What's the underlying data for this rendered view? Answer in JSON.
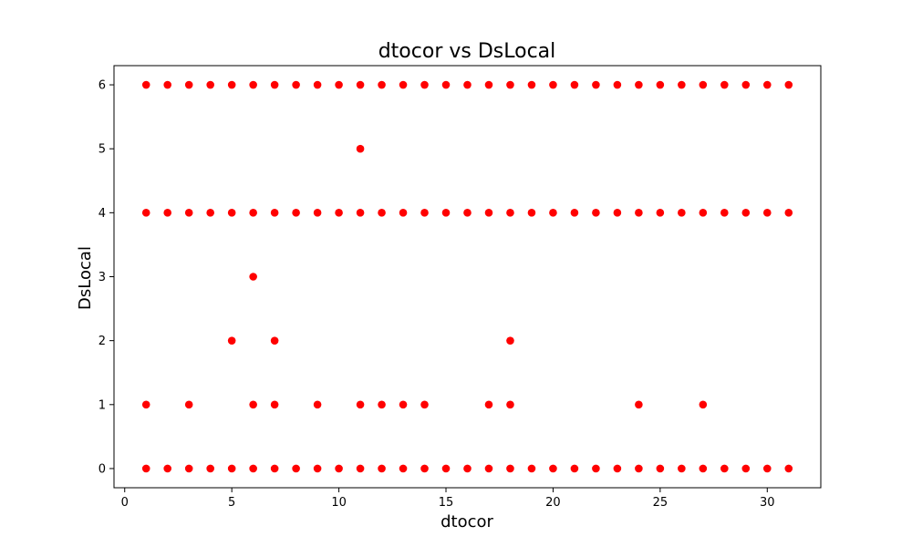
{
  "chart_data": {
    "type": "scatter",
    "title": "dtocor vs DsLocal",
    "xlabel": "dtocor",
    "ylabel": "DsLocal",
    "xlim": [
      -0.5,
      32.5
    ],
    "ylim": [
      -0.3,
      6.3
    ],
    "xticks": [
      0,
      5,
      10,
      15,
      20,
      25,
      30
    ],
    "yticks": [
      0,
      1,
      2,
      3,
      4,
      5,
      6
    ],
    "grid": false,
    "legend": "none",
    "marker_color": "#ff0000",
    "points": [
      [
        1,
        0
      ],
      [
        2,
        0
      ],
      [
        3,
        0
      ],
      [
        4,
        0
      ],
      [
        5,
        0
      ],
      [
        6,
        0
      ],
      [
        7,
        0
      ],
      [
        8,
        0
      ],
      [
        9,
        0
      ],
      [
        10,
        0
      ],
      [
        11,
        0
      ],
      [
        12,
        0
      ],
      [
        13,
        0
      ],
      [
        14,
        0
      ],
      [
        15,
        0
      ],
      [
        16,
        0
      ],
      [
        17,
        0
      ],
      [
        18,
        0
      ],
      [
        19,
        0
      ],
      [
        20,
        0
      ],
      [
        21,
        0
      ],
      [
        22,
        0
      ],
      [
        23,
        0
      ],
      [
        24,
        0
      ],
      [
        25,
        0
      ],
      [
        26,
        0
      ],
      [
        27,
        0
      ],
      [
        28,
        0
      ],
      [
        29,
        0
      ],
      [
        30,
        0
      ],
      [
        31,
        0
      ],
      [
        1,
        4
      ],
      [
        2,
        4
      ],
      [
        3,
        4
      ],
      [
        4,
        4
      ],
      [
        5,
        4
      ],
      [
        6,
        4
      ],
      [
        7,
        4
      ],
      [
        8,
        4
      ],
      [
        9,
        4
      ],
      [
        10,
        4
      ],
      [
        11,
        4
      ],
      [
        12,
        4
      ],
      [
        13,
        4
      ],
      [
        14,
        4
      ],
      [
        15,
        4
      ],
      [
        16,
        4
      ],
      [
        17,
        4
      ],
      [
        18,
        4
      ],
      [
        19,
        4
      ],
      [
        20,
        4
      ],
      [
        21,
        4
      ],
      [
        22,
        4
      ],
      [
        23,
        4
      ],
      [
        24,
        4
      ],
      [
        25,
        4
      ],
      [
        26,
        4
      ],
      [
        27,
        4
      ],
      [
        28,
        4
      ],
      [
        29,
        4
      ],
      [
        30,
        4
      ],
      [
        31,
        4
      ],
      [
        1,
        6
      ],
      [
        2,
        6
      ],
      [
        3,
        6
      ],
      [
        4,
        6
      ],
      [
        5,
        6
      ],
      [
        6,
        6
      ],
      [
        7,
        6
      ],
      [
        8,
        6
      ],
      [
        9,
        6
      ],
      [
        10,
        6
      ],
      [
        11,
        6
      ],
      [
        12,
        6
      ],
      [
        13,
        6
      ],
      [
        14,
        6
      ],
      [
        15,
        6
      ],
      [
        16,
        6
      ],
      [
        17,
        6
      ],
      [
        18,
        6
      ],
      [
        19,
        6
      ],
      [
        20,
        6
      ],
      [
        21,
        6
      ],
      [
        22,
        6
      ],
      [
        23,
        6
      ],
      [
        24,
        6
      ],
      [
        25,
        6
      ],
      [
        26,
        6
      ],
      [
        27,
        6
      ],
      [
        28,
        6
      ],
      [
        29,
        6
      ],
      [
        30,
        6
      ],
      [
        31,
        6
      ],
      [
        1,
        1
      ],
      [
        3,
        1
      ],
      [
        6,
        1
      ],
      [
        7,
        1
      ],
      [
        9,
        1
      ],
      [
        11,
        1
      ],
      [
        12,
        1
      ],
      [
        13,
        1
      ],
      [
        14,
        1
      ],
      [
        17,
        1
      ],
      [
        18,
        1
      ],
      [
        24,
        1
      ],
      [
        27,
        1
      ],
      [
        5,
        2
      ],
      [
        7,
        2
      ],
      [
        18,
        2
      ],
      [
        6,
        3
      ],
      [
        11,
        5
      ]
    ]
  }
}
